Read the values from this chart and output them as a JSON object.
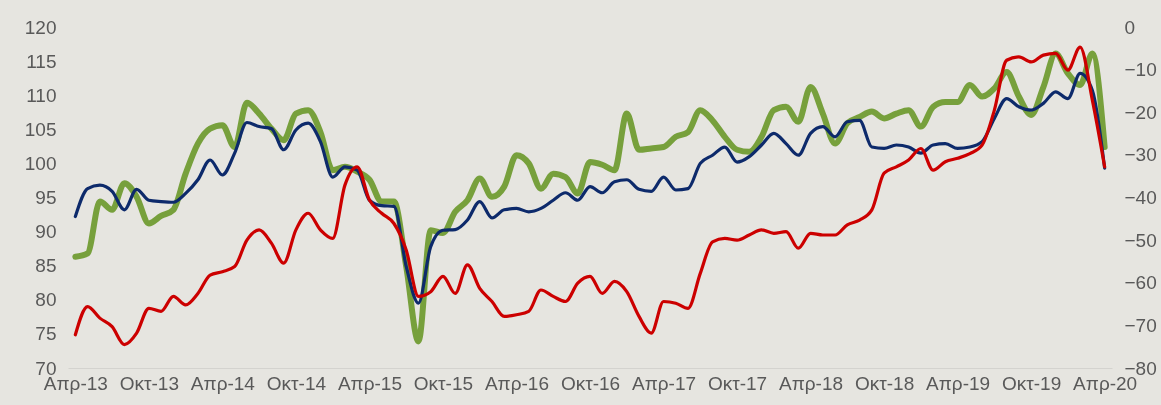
{
  "chart_data": {
    "type": "line",
    "categories": [
      "Απρ-13",
      null,
      null,
      null,
      null,
      null,
      "Οκτ-13",
      null,
      null,
      null,
      null,
      null,
      "Απρ-14",
      null,
      null,
      null,
      null,
      null,
      "Οκτ-14",
      null,
      null,
      null,
      null,
      null,
      "Απρ-15",
      null,
      null,
      null,
      null,
      null,
      "Οκτ-15",
      null,
      null,
      null,
      null,
      null,
      "Απρ-16",
      null,
      null,
      null,
      null,
      null,
      "Οκτ-16",
      null,
      null,
      null,
      null,
      null,
      "Απρ-17",
      null,
      null,
      null,
      null,
      null,
      "Οκτ-17",
      null,
      null,
      null,
      null,
      null,
      "Απρ-18",
      null,
      null,
      null,
      null,
      null,
      "Οκτ-18",
      null,
      null,
      null,
      null,
      null,
      "Απρ-19",
      null,
      null,
      null,
      null,
      null,
      "Οκτ-19",
      null,
      null,
      null,
      null,
      null,
      "Απρ-20"
    ],
    "series": [
      {
        "color": "#77a03c",
        "values": [
          86.3,
          86.8,
          94.4,
          93.2,
          97.1,
          95.1,
          91.2,
          92.3,
          93.2,
          98.5,
          102.9,
          105.1,
          105.6,
          102.4,
          108.9,
          107.3,
          105.1,
          103.4,
          107.3,
          107.8,
          104.6,
          99,
          99.5,
          98.8,
          97.6,
          94.4,
          94.4,
          84.9,
          73.9,
          90.2,
          89.8,
          92.9,
          94.6,
          97.8,
          95.1,
          96.6,
          101.2,
          100,
          96.3,
          98.5,
          98,
          95.6,
          100.2,
          99.8,
          99,
          107.3,
          102,
          102.2,
          102.4,
          103.9,
          104.6,
          107.8,
          106.3,
          103.9,
          102,
          101.7,
          103.9,
          107.8,
          108.3,
          106.1,
          111.2,
          107.3,
          102.9,
          105.9,
          106.8,
          107.6,
          106.6,
          107.3,
          107.8,
          105.4,
          108.3,
          109,
          109,
          111.5,
          109.8,
          111,
          113.4,
          109.8,
          107.1,
          111.2,
          116.1,
          113.2,
          111.5,
          116.1,
          102.4
        ]
      },
      {
        "color": "#0d2a6b",
        "values": [
          92.2,
          96.3,
          96.8,
          95.9,
          93.2,
          96.2,
          94.6,
          94.4,
          94.3,
          95.6,
          97.6,
          100.5,
          98.3,
          101.5,
          106,
          105.4,
          105.1,
          102,
          104.9,
          105.9,
          103.2,
          98,
          99.5,
          99,
          94.6,
          93.8,
          93.7,
          84.9,
          79.5,
          87.8,
          90.2,
          90.3,
          91.7,
          94.4,
          92,
          93.2,
          93.4,
          92.9,
          93.4,
          94.6,
          95.7,
          94.6,
          96.6,
          95.7,
          97.3,
          97.6,
          96.2,
          95.9,
          98,
          96.1,
          96.3,
          100,
          101.2,
          102.4,
          100.2,
          101,
          102.7,
          104.4,
          102.9,
          101.2,
          104.4,
          105.4,
          103.9,
          106.1,
          106.3,
          102.4,
          102.2,
          102.7,
          102.4,
          101.5,
          102.7,
          102.9,
          102.2,
          102.4,
          103.2,
          106.6,
          109.5,
          108.3,
          107.8,
          108.8,
          110.5,
          109.5,
          113.2,
          110.7,
          99.3
        ]
      },
      {
        "color": "#cc0000",
        "axis": "y2",
        "values": [
          -72.2,
          -65.6,
          -68.3,
          -70.3,
          -74.5,
          -71.8,
          -66,
          -66.7,
          -63.2,
          -65.2,
          -62.5,
          -58.2,
          -57.4,
          -56.2,
          -50,
          -47.6,
          -50.7,
          -55.4,
          -47.6,
          -43.7,
          -47.6,
          -49.6,
          -37.1,
          -32.8,
          -40.6,
          -43.7,
          -46.1,
          -52.3,
          -63.2,
          -62.1,
          -58.5,
          -62.5,
          -55.8,
          -61.3,
          -64.4,
          -67.9,
          -67.5,
          -66.7,
          -61.7,
          -63.2,
          -64.4,
          -60.1,
          -58.5,
          -62.5,
          -59.7,
          -62.1,
          -67.9,
          -71.8,
          -64.4,
          -64.8,
          -66,
          -57.8,
          -50.4,
          -49.6,
          -50,
          -48.8,
          -47.6,
          -48.4,
          -48,
          -51.9,
          -48.4,
          -48.8,
          -48.8,
          -46.4,
          -45.3,
          -42.9,
          -34.3,
          -32.8,
          -31.2,
          -28.5,
          -33.6,
          -31.6,
          -30.8,
          -29.7,
          -27.7,
          -19.5,
          -7.8,
          -7,
          -8.2,
          -6.6,
          -6.2,
          -10.1,
          -4.7,
          -17.2,
          -32.8
        ]
      }
    ],
    "ylim": [
      70,
      120
    ],
    "yticks": [
      70,
      75,
      80,
      85,
      90,
      95,
      100,
      105,
      110,
      115,
      120
    ],
    "y2lim": [
      -80,
      0
    ],
    "y2ticks": [
      -80,
      -70,
      -60,
      -50,
      -40,
      -30,
      -20,
      -10,
      0
    ],
    "grid": false
  }
}
